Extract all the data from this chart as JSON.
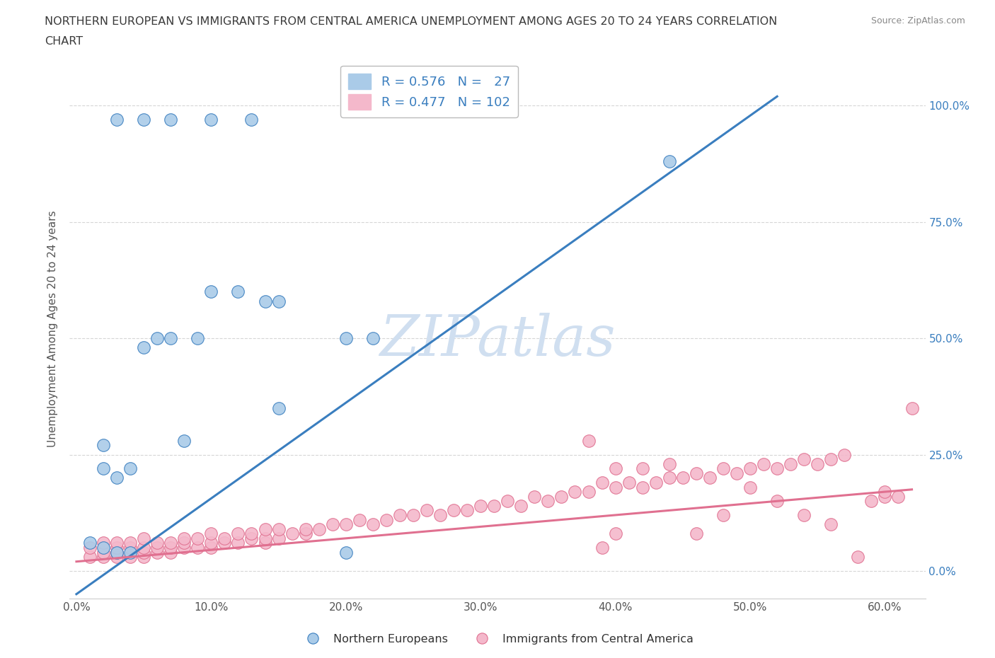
{
  "title_line1": "NORTHERN EUROPEAN VS IMMIGRANTS FROM CENTRAL AMERICA UNEMPLOYMENT AMONG AGES 20 TO 24 YEARS CORRELATION",
  "title_line2": "CHART",
  "source_text": "Source: ZipAtlas.com",
  "ylabel": "Unemployment Among Ages 20 to 24 years",
  "ytick_values": [
    0.0,
    0.25,
    0.5,
    0.75,
    1.0
  ],
  "xtick_values": [
    0.0,
    0.1,
    0.2,
    0.3,
    0.4,
    0.5,
    0.6
  ],
  "xlim": [
    -0.005,
    0.63
  ],
  "ylim": [
    -0.06,
    1.1
  ],
  "blue_color": "#aacbe8",
  "pink_color": "#f4b8cb",
  "blue_line_color": "#3a7ebf",
  "pink_line_color": "#e07090",
  "watermark_color": "#d0dff0",
  "bg_color": "#ffffff",
  "grid_color": "#cccccc",
  "title_color": "#3a3a3a",
  "source_color": "#888888",
  "axis_label_color": "#555555",
  "right_tick_color": "#3a7ebf",
  "blue_line_x0": 0.0,
  "blue_line_y0": -0.05,
  "blue_line_x1": 0.52,
  "blue_line_y1": 1.02,
  "pink_line_x0": 0.0,
  "pink_line_y0": 0.02,
  "pink_line_x1": 0.62,
  "pink_line_y1": 0.175,
  "blue_scatter_x": [
    0.02,
    0.02,
    0.03,
    0.04,
    0.05,
    0.06,
    0.07,
    0.08,
    0.09,
    0.1,
    0.12,
    0.14,
    0.15,
    0.2,
    0.22,
    0.44,
    0.03,
    0.05,
    0.07,
    0.1,
    0.13,
    0.15,
    0.01,
    0.02,
    0.03,
    0.04,
    0.2
  ],
  "blue_scatter_y": [
    0.22,
    0.27,
    0.2,
    0.22,
    0.48,
    0.5,
    0.5,
    0.28,
    0.5,
    0.6,
    0.6,
    0.58,
    0.58,
    0.5,
    0.5,
    0.88,
    0.97,
    0.97,
    0.97,
    0.97,
    0.97,
    0.35,
    0.06,
    0.05,
    0.04,
    0.04,
    0.04
  ],
  "pink_scatter_x": [
    0.01,
    0.01,
    0.02,
    0.02,
    0.02,
    0.03,
    0.03,
    0.03,
    0.03,
    0.04,
    0.04,
    0.04,
    0.05,
    0.05,
    0.05,
    0.05,
    0.06,
    0.06,
    0.06,
    0.07,
    0.07,
    0.07,
    0.08,
    0.08,
    0.08,
    0.09,
    0.09,
    0.1,
    0.1,
    0.1,
    0.11,
    0.11,
    0.12,
    0.12,
    0.13,
    0.13,
    0.14,
    0.14,
    0.14,
    0.15,
    0.15,
    0.16,
    0.17,
    0.17,
    0.18,
    0.19,
    0.2,
    0.21,
    0.22,
    0.23,
    0.24,
    0.25,
    0.26,
    0.27,
    0.28,
    0.29,
    0.3,
    0.31,
    0.32,
    0.33,
    0.34,
    0.35,
    0.36,
    0.37,
    0.38,
    0.39,
    0.39,
    0.4,
    0.4,
    0.41,
    0.42,
    0.43,
    0.44,
    0.45,
    0.46,
    0.47,
    0.48,
    0.49,
    0.5,
    0.51,
    0.52,
    0.53,
    0.54,
    0.55,
    0.56,
    0.57,
    0.58,
    0.59,
    0.6,
    0.6,
    0.61,
    0.62,
    0.38,
    0.4,
    0.42,
    0.44,
    0.46,
    0.48,
    0.5,
    0.52,
    0.54,
    0.56
  ],
  "pink_scatter_y": [
    0.03,
    0.05,
    0.03,
    0.04,
    0.06,
    0.03,
    0.04,
    0.05,
    0.06,
    0.03,
    0.05,
    0.06,
    0.03,
    0.04,
    0.05,
    0.07,
    0.04,
    0.05,
    0.06,
    0.04,
    0.05,
    0.06,
    0.05,
    0.06,
    0.07,
    0.05,
    0.07,
    0.05,
    0.06,
    0.08,
    0.06,
    0.07,
    0.06,
    0.08,
    0.07,
    0.08,
    0.06,
    0.07,
    0.09,
    0.07,
    0.09,
    0.08,
    0.08,
    0.09,
    0.09,
    0.1,
    0.1,
    0.11,
    0.1,
    0.11,
    0.12,
    0.12,
    0.13,
    0.12,
    0.13,
    0.13,
    0.14,
    0.14,
    0.15,
    0.14,
    0.16,
    0.15,
    0.16,
    0.17,
    0.17,
    0.05,
    0.19,
    0.08,
    0.18,
    0.19,
    0.18,
    0.19,
    0.2,
    0.2,
    0.21,
    0.2,
    0.22,
    0.21,
    0.22,
    0.23,
    0.22,
    0.23,
    0.24,
    0.23,
    0.24,
    0.25,
    0.03,
    0.15,
    0.16,
    0.17,
    0.16,
    0.35,
    0.28,
    0.22,
    0.22,
    0.23,
    0.08,
    0.12,
    0.18,
    0.15,
    0.12,
    0.1
  ]
}
